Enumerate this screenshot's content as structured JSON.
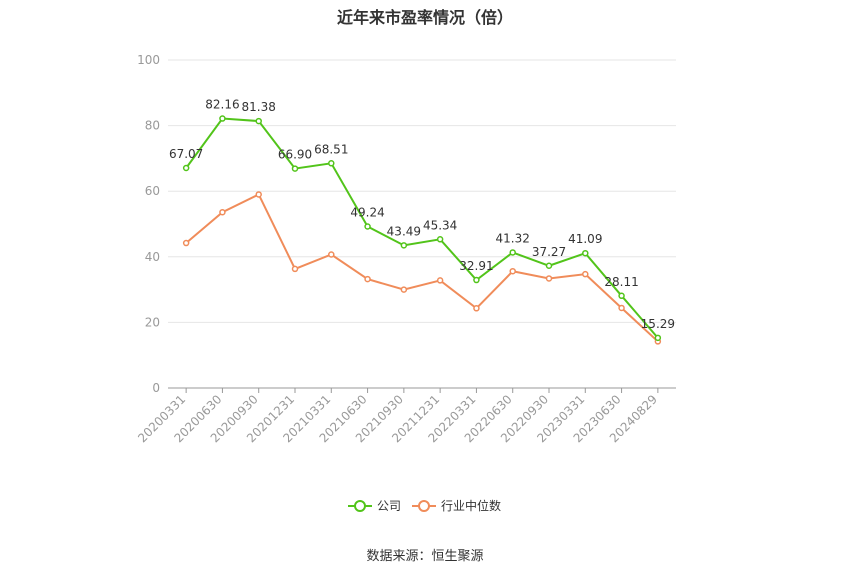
{
  "chart_data": {
    "type": "line",
    "title": "近年来市盈率情况（倍）",
    "source": "数据来源：恒生聚源",
    "categories": [
      "20200331",
      "20200630",
      "20200930",
      "20201231",
      "20210331",
      "20210630",
      "20210930",
      "20211231",
      "20220331",
      "20220630",
      "20220930",
      "20230331",
      "20230630",
      "20240829"
    ],
    "ylim": [
      0,
      100
    ],
    "yticks": [
      0,
      20,
      40,
      60,
      80,
      100
    ],
    "grid": true,
    "legend_position": "bottom",
    "series": [
      {
        "name": "公司",
        "color": "#52c41a",
        "show_labels": true,
        "values": [
          67.07,
          82.16,
          81.38,
          66.9,
          68.51,
          49.24,
          43.49,
          45.34,
          32.91,
          41.32,
          37.27,
          41.09,
          28.11,
          15.29
        ],
        "labels": [
          "67.07",
          "82.16",
          "81.38",
          "66.90",
          "68.51",
          "49.24",
          "43.49",
          "45.34",
          "32.91",
          "41.32",
          "37.27",
          "41.09",
          "28.11",
          "15.29"
        ]
      },
      {
        "name": "行业中位数",
        "color": "#f08c5a",
        "show_labels": false,
        "values": [
          44.2,
          53.6,
          59.0,
          36.3,
          40.7,
          33.2,
          30.0,
          32.8,
          24.3,
          35.6,
          33.4,
          34.7,
          24.4,
          14.2
        ]
      }
    ]
  }
}
